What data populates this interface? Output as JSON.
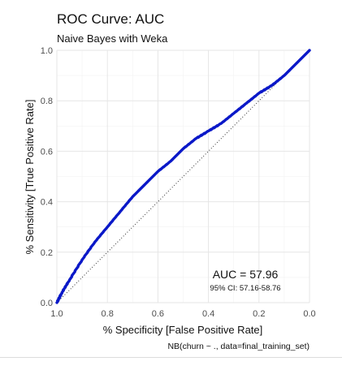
{
  "chart_data": {
    "type": "line",
    "title": "ROC Curve: AUC",
    "subtitle": "Naive Bayes with Weka",
    "xlabel": "% Specificity [False Positive Rate]",
    "ylabel": "% Sensitivity [True Positive Rate]",
    "caption": "NB(churn ~ ., data=final_training_set)",
    "xlim": [
      1.0,
      0.0
    ],
    "ylim": [
      0.0,
      1.0
    ],
    "x_reversed": true,
    "x_ticks": [
      "1.0",
      "0.8",
      "0.6",
      "0.4",
      "0.2",
      "0.0"
    ],
    "y_ticks": [
      "0.0",
      "0.2",
      "0.4",
      "0.6",
      "0.8",
      "1.0"
    ],
    "grid": true,
    "annotations": {
      "auc": "AUC = 57.96",
      "ci": "95% CI: 57.16-58.76"
    },
    "series": [
      {
        "color": "#0a18c8",
        "x": [
          1.0,
          0.98,
          0.95,
          0.9,
          0.85,
          0.8,
          0.75,
          0.7,
          0.65,
          0.6,
          0.55,
          0.5,
          0.45,
          0.4,
          0.35,
          0.3,
          0.25,
          0.2,
          0.15,
          0.1,
          0.05,
          0.0
        ],
        "y": [
          0.0,
          0.04,
          0.09,
          0.17,
          0.24,
          0.3,
          0.36,
          0.42,
          0.47,
          0.52,
          0.56,
          0.61,
          0.65,
          0.68,
          0.71,
          0.75,
          0.79,
          0.83,
          0.86,
          0.9,
          0.95,
          1.0
        ]
      }
    ],
    "reference_line": {
      "x": [
        1.0,
        0.0
      ],
      "y": [
        0.0,
        1.0
      ],
      "color": "#333333",
      "style": "dotted"
    }
  }
}
